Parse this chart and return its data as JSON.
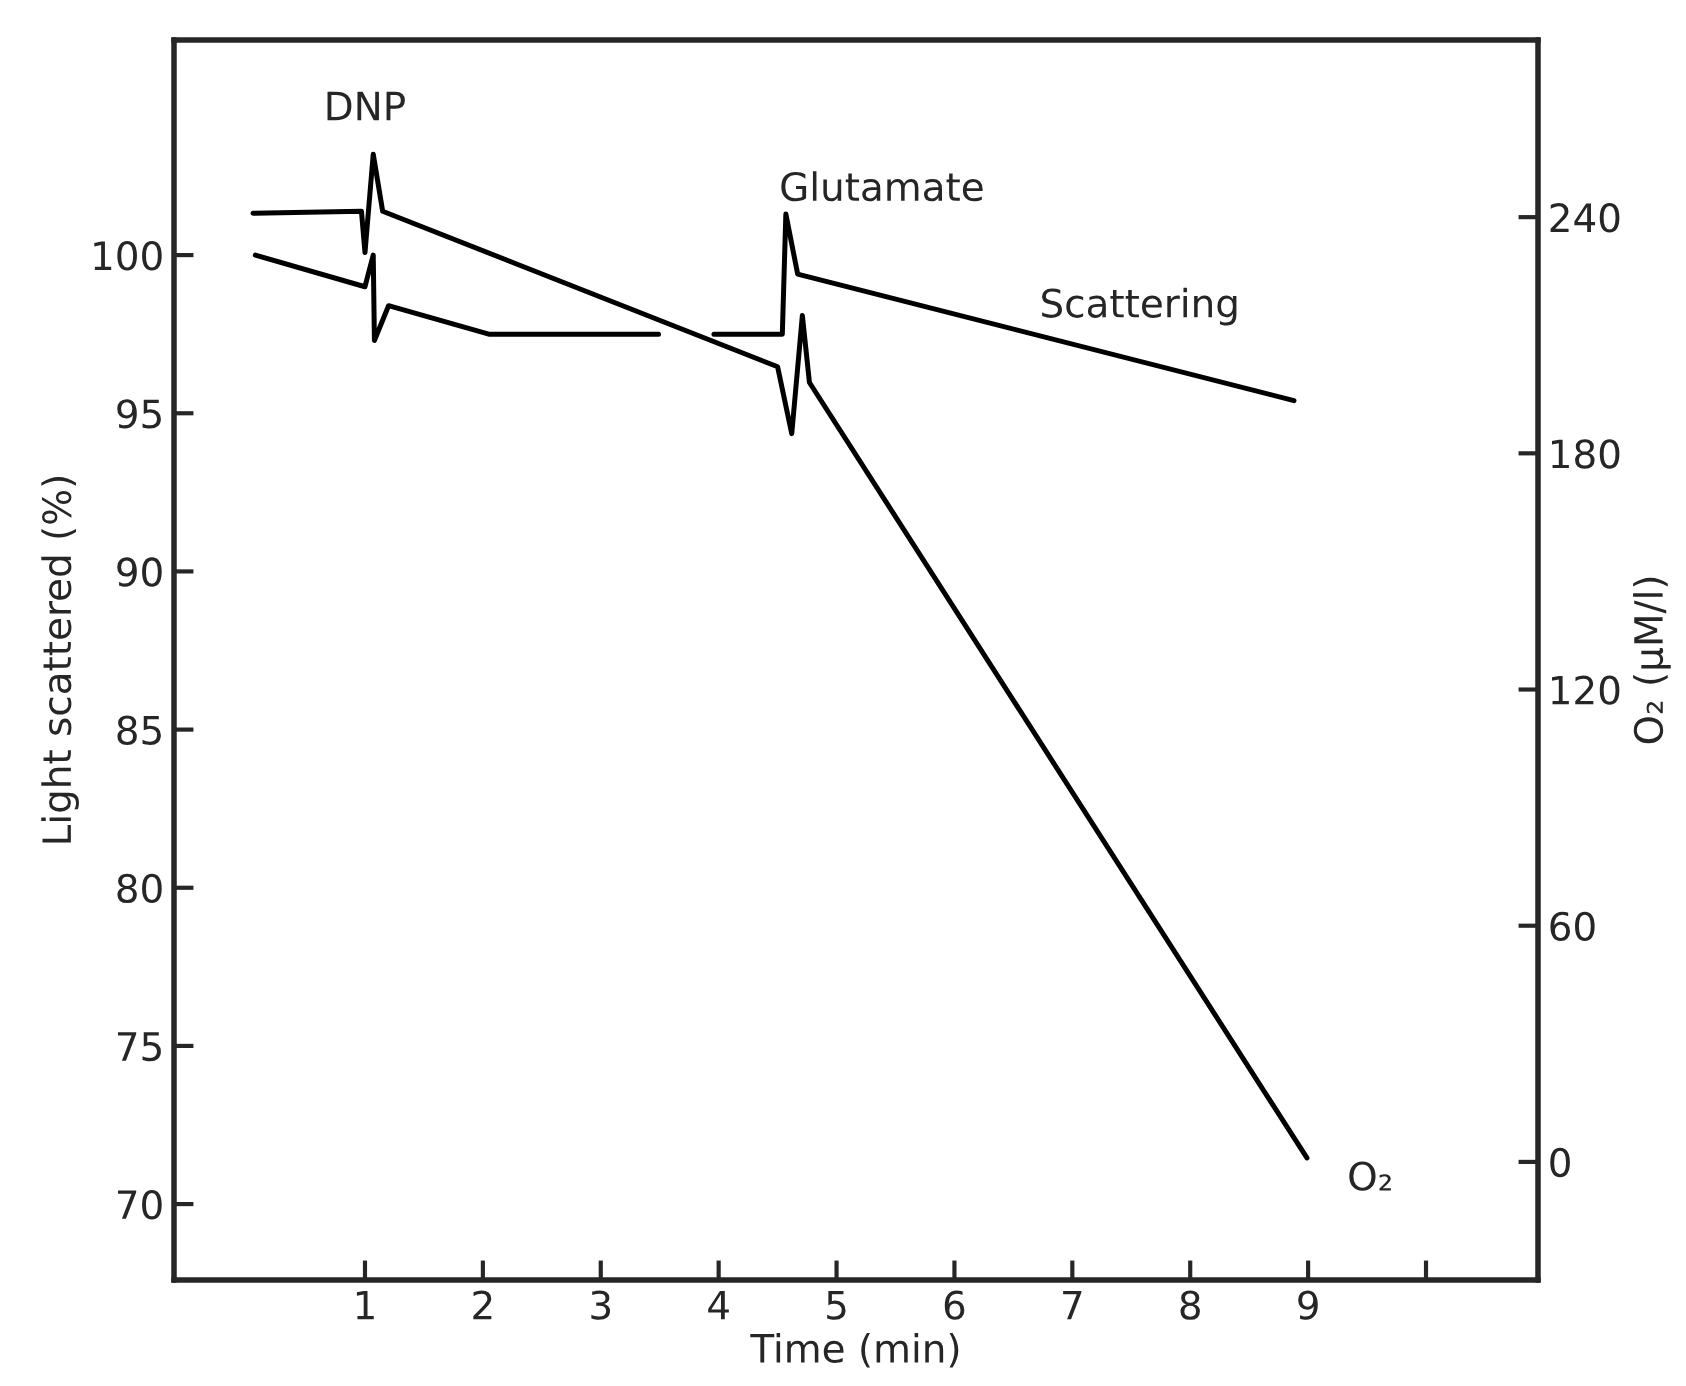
{
  "chart_data": {
    "type": "line",
    "xlabel": "Time (min)",
    "ylabel": "Light scattered (%)",
    "y2label": "O₂ (μM/l)",
    "xlim": [
      -0.62,
      10.95
    ],
    "xticks": [
      1,
      2,
      3,
      4,
      5,
      6,
      7,
      8,
      9,
      {
        "value": 10,
        "label": null
      }
    ],
    "ylim": [
      67.6,
      106.8
    ],
    "yticks": [
      70,
      75,
      80,
      85,
      90,
      95,
      100
    ],
    "y2lim": [
      -30,
      285
    ],
    "y2ticks": [
      0,
      60,
      120,
      180,
      240
    ],
    "series": [
      {
        "color": "#000000",
        "x": [
          0.07,
          1.0,
          1.07,
          1.08,
          1.2,
          2.05,
          3.49,
          3.7,
          3.96,
          4.54,
          4.57,
          4.67,
          8.88
        ],
        "values": [
          100.0,
          99.0,
          100.0,
          97.3,
          98.4,
          97.5,
          97.5,
          null,
          97.5,
          97.5,
          101.3,
          99.4,
          95.4
        ]
      },
      {
        "color": "#000000",
        "axis": "y2",
        "x": [
          0.05,
          0.97,
          1.0,
          1.07,
          1.15,
          4.5,
          4.62,
          4.71,
          4.77,
          8.99
        ],
        "values": [
          241,
          241.5,
          231,
          256,
          241.5,
          202,
          185,
          215,
          198,
          1
        ]
      }
    ],
    "annotations": [
      "DNP",
      "Glutamate",
      "Scattering",
      "O₂"
    ],
    "grid": false,
    "legend": false,
    "marker": "none",
    "line_style": "solid"
  }
}
